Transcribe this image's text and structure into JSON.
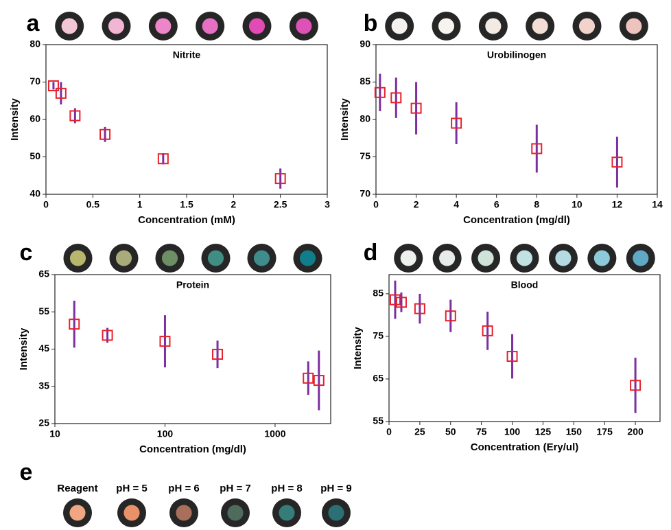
{
  "chart_data": [
    {
      "type": "scatter",
      "panel_label": "a",
      "title": "Nitrite",
      "xlabel": "Concentration (mM)",
      "ylabel": "Intensity",
      "x": [
        0.08,
        0.16,
        0.31,
        0.63,
        1.25,
        2.5
      ],
      "values": [
        69,
        67,
        61,
        56,
        49.5,
        44.2
      ],
      "errors": [
        1,
        3,
        2,
        2,
        1.5,
        2.7
      ],
      "xlim": [
        0,
        3
      ],
      "xticks": [
        0,
        0.5,
        1,
        1.5,
        2,
        2.5,
        3
      ],
      "ylim": [
        40,
        80
      ],
      "yticks": [
        40,
        50,
        60,
        70,
        80
      ],
      "log_x": false,
      "marker_color": "#e8202a",
      "error_color": "#7b2fa0",
      "swatches": [
        "#f3c6d6",
        "#f1b6d4",
        "#ec86c9",
        "#e870c4",
        "#e24bb5",
        "#de52b8"
      ]
    },
    {
      "type": "scatter",
      "panel_label": "b",
      "title": "Urobilinogen",
      "xlabel": "Concentration (mg/dl)",
      "ylabel": "Intensity",
      "x": [
        0.2,
        1,
        2,
        4,
        8,
        12
      ],
      "values": [
        83.6,
        82.9,
        81.5,
        79.5,
        76.1,
        74.3
      ],
      "errors": [
        2.5,
        2.7,
        3.5,
        2.8,
        3.2,
        3.4
      ],
      "xlim": [
        0,
        14
      ],
      "xticks": [
        0,
        2,
        4,
        6,
        8,
        10,
        12,
        14
      ],
      "ylim": [
        70,
        90
      ],
      "yticks": [
        70,
        75,
        80,
        85,
        90
      ],
      "log_x": false,
      "marker_color": "#e8202a",
      "error_color": "#7b2fa0",
      "swatches": [
        "#f6f1ec",
        "#f7f3ee",
        "#f3ebe3",
        "#f3ddd4",
        "#f1d3cc",
        "#efc3bd"
      ]
    },
    {
      "type": "scatter",
      "panel_label": "c",
      "title": "Protein",
      "xlabel": "Concentration (mg/dl)",
      "ylabel": "Intensity",
      "x": [
        15,
        30,
        100,
        300,
        2000,
        2500
      ],
      "values": [
        51.7,
        48.7,
        47.1,
        43.6,
        37.2,
        36.6
      ],
      "errors": [
        6.3,
        2,
        7,
        3.7,
        4.5,
        8
      ],
      "xlim": [
        10,
        3200
      ],
      "xticks": [
        10,
        100,
        1000
      ],
      "ylim": [
        25,
        65
      ],
      "yticks": [
        25,
        35,
        45,
        55,
        65
      ],
      "log_x": true,
      "marker_color": "#e8202a",
      "error_color": "#7b2fa0",
      "swatches": [
        "#b9b66e",
        "#a9ac7a",
        "#6e8f64",
        "#3f8d83",
        "#3e8c8c",
        "#107e8a"
      ]
    },
    {
      "type": "scatter",
      "panel_label": "d",
      "title": "Blood",
      "xlabel": "Concentration (Ery/ul)",
      "ylabel": "Intensity",
      "x": [
        5,
        10,
        25,
        50,
        80,
        100,
        200
      ],
      "values": [
        83.6,
        83,
        81.5,
        79.8,
        76.3,
        70.3,
        63.5
      ],
      "errors": [
        4.5,
        2.3,
        3.5,
        3.8,
        4.5,
        5.2,
        6.5
      ],
      "xlim": [
        0,
        220
      ],
      "xticks": [
        0,
        25,
        50,
        75,
        100,
        125,
        150,
        175,
        200
      ],
      "ylim": [
        55,
        89.5
      ],
      "yticks": [
        55,
        65,
        75,
        85
      ],
      "log_x": false,
      "marker_color": "#e8202a",
      "error_color": "#7b2fa0",
      "swatches": [
        "#eef0ee",
        "#e7ece9",
        "#cfe3da",
        "#c2e1e3",
        "#b4dbe2",
        "#8ccadb",
        "#5fa9c5"
      ]
    }
  ],
  "panel_e": {
    "label": "e",
    "labels": [
      "Reagent",
      "pH = 5",
      "pH = 6",
      "pH = 7",
      "pH = 8",
      "pH = 9"
    ],
    "swatches": [
      "#f0a682",
      "#e9926a",
      "#a8705a",
      "#4f6b5c",
      "#367c78",
      "#2c6f74"
    ]
  }
}
